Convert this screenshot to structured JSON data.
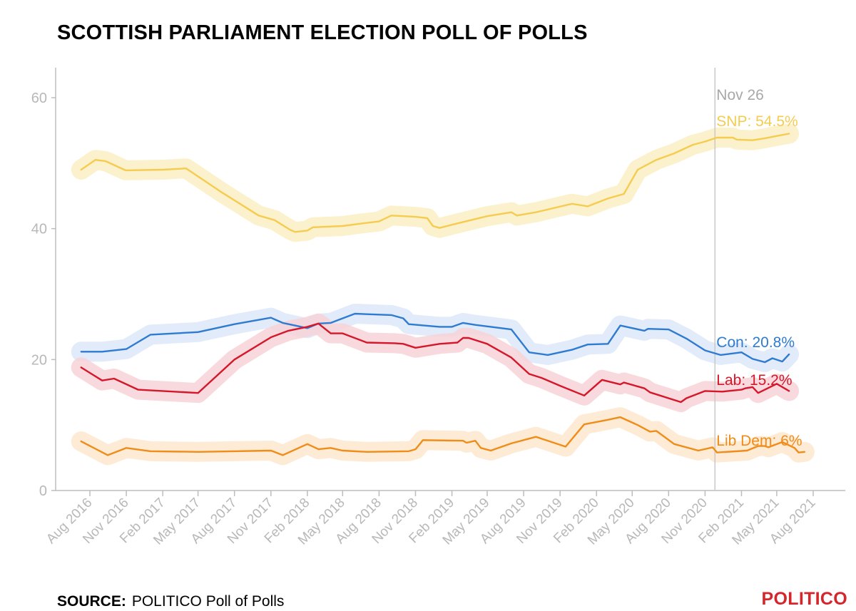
{
  "title": "SCOTTISH PARLIAMENT ELECTION POLL OF POLLS",
  "footer": {
    "source_label": "SOURCE:",
    "source_text": "POLITICO Poll of Polls"
  },
  "brand": {
    "logo_text": "POLITICO",
    "color": "#d7262b"
  },
  "chart_data": {
    "type": "line",
    "ylim": [
      0,
      65
    ],
    "yticks": [
      0,
      20,
      40,
      60
    ],
    "xlim": [
      "2016-06-15",
      "2021-09-15"
    ],
    "xticks": [
      "2016-08-01",
      "2016-11-01",
      "2017-02-01",
      "2017-05-01",
      "2017-08-01",
      "2017-11-01",
      "2018-02-01",
      "2018-05-01",
      "2018-08-01",
      "2018-11-01",
      "2019-02-01",
      "2019-05-01",
      "2019-08-01",
      "2019-11-01",
      "2020-02-01",
      "2020-05-01",
      "2020-08-01",
      "2020-11-01",
      "2021-02-01",
      "2021-05-01",
      "2021-08-01"
    ],
    "xtick_labels": [
      "Aug 2016",
      "Nov 2016",
      "Feb 2017",
      "May 2017",
      "Aug 2017",
      "Nov 2017",
      "Feb 2018",
      "May 2018",
      "Aug 2018",
      "Nov 2018",
      "Feb 2019",
      "May 2019",
      "Aug 2019",
      "Nov 2019",
      "Feb 2020",
      "May 2020",
      "Aug 2020",
      "Nov 2020",
      "Feb 2021",
      "May 2021",
      "Aug 2021"
    ],
    "current_date": "2020-11-26",
    "current_label": "Nov 26",
    "grid": false,
    "series": [
      {
        "name": "SNP",
        "color": "#f5cc4f",
        "band_color": "#fbeec4",
        "label": "SNP: 54.5%",
        "points": [
          [
            "2016-07-10",
            49.0
          ],
          [
            "2016-08-15",
            50.5
          ],
          [
            "2016-09-10",
            50.3
          ],
          [
            "2016-10-30",
            48.9
          ],
          [
            "2017-02-01",
            49.0
          ],
          [
            "2017-04-01",
            49.2
          ],
          [
            "2017-07-01",
            45.5
          ],
          [
            "2017-10-01",
            42.0
          ],
          [
            "2017-11-10",
            41.3
          ],
          [
            "2017-12-20",
            39.8
          ],
          [
            "2018-01-01",
            39.5
          ],
          [
            "2018-02-01",
            39.7
          ],
          [
            "2018-02-15",
            40.2
          ],
          [
            "2018-05-01",
            40.4
          ],
          [
            "2018-06-20",
            40.8
          ],
          [
            "2018-08-01",
            41.1
          ],
          [
            "2018-09-01",
            42.0
          ],
          [
            "2018-11-01",
            41.8
          ],
          [
            "2018-12-01",
            41.6
          ],
          [
            "2018-12-15",
            40.4
          ],
          [
            "2019-01-01",
            40.1
          ],
          [
            "2019-02-15",
            40.8
          ],
          [
            "2019-05-01",
            41.9
          ],
          [
            "2019-07-01",
            42.5
          ],
          [
            "2019-07-15",
            42.0
          ],
          [
            "2019-09-01",
            42.5
          ],
          [
            "2019-12-01",
            43.8
          ],
          [
            "2020-01-10",
            43.4
          ],
          [
            "2020-03-01",
            44.6
          ],
          [
            "2020-04-10",
            45.3
          ],
          [
            "2020-05-15",
            49.0
          ],
          [
            "2020-07-01",
            50.5
          ],
          [
            "2020-08-15",
            51.5
          ],
          [
            "2020-10-01",
            52.8
          ],
          [
            "2020-11-01",
            53.3
          ],
          [
            "2020-12-01",
            53.9
          ],
          [
            "2021-01-10",
            53.9
          ],
          [
            "2021-01-20",
            53.6
          ],
          [
            "2021-03-01",
            53.5
          ],
          [
            "2021-04-01",
            53.8
          ],
          [
            "2021-05-05",
            54.2
          ],
          [
            "2021-06-01",
            54.5
          ]
        ]
      },
      {
        "name": "Con",
        "color": "#2e7bd2",
        "band_color": "#dde8f8",
        "label": "Con: 20.8%",
        "points": [
          [
            "2016-07-10",
            21.2
          ],
          [
            "2016-09-01",
            21.2
          ],
          [
            "2016-11-01",
            21.6
          ],
          [
            "2017-01-01",
            23.8
          ],
          [
            "2017-05-01",
            24.2
          ],
          [
            "2017-08-01",
            25.4
          ],
          [
            "2017-11-01",
            26.4
          ],
          [
            "2017-12-01",
            25.6
          ],
          [
            "2018-01-01",
            25.2
          ],
          [
            "2018-02-01",
            24.8
          ],
          [
            "2018-03-01",
            25.5
          ],
          [
            "2018-04-01",
            25.6
          ],
          [
            "2018-06-01",
            27.0
          ],
          [
            "2018-09-01",
            26.8
          ],
          [
            "2018-10-01",
            26.3
          ],
          [
            "2018-10-15",
            25.4
          ],
          [
            "2019-01-01",
            25.0
          ],
          [
            "2019-02-01",
            25.0
          ],
          [
            "2019-03-01",
            25.6
          ],
          [
            "2019-04-01",
            25.3
          ],
          [
            "2019-07-01",
            24.6
          ],
          [
            "2019-08-15",
            21.1
          ],
          [
            "2019-10-01",
            20.7
          ],
          [
            "2019-12-01",
            21.5
          ],
          [
            "2020-01-10",
            22.3
          ],
          [
            "2020-03-01",
            22.4
          ],
          [
            "2020-04-01",
            25.2
          ],
          [
            "2020-06-01",
            24.4
          ],
          [
            "2020-06-10",
            24.7
          ],
          [
            "2020-08-01",
            24.6
          ],
          [
            "2020-09-15",
            23.2
          ],
          [
            "2020-11-01",
            21.4
          ],
          [
            "2020-12-10",
            20.7
          ],
          [
            "2021-02-01",
            21.1
          ],
          [
            "2021-03-01",
            20.1
          ],
          [
            "2021-04-01",
            19.6
          ],
          [
            "2021-04-20",
            20.2
          ],
          [
            "2021-05-15",
            19.7
          ],
          [
            "2021-06-01",
            20.8
          ]
        ]
      },
      {
        "name": "Lab",
        "color": "#d6162a",
        "band_color": "#f7d3d8",
        "label": "Lab: 15.2%",
        "points": [
          [
            "2016-07-10",
            18.8
          ],
          [
            "2016-09-01",
            16.8
          ],
          [
            "2016-10-01",
            17.1
          ],
          [
            "2016-12-01",
            15.4
          ],
          [
            "2017-03-01",
            15.1
          ],
          [
            "2017-05-01",
            14.9
          ],
          [
            "2017-08-01",
            20.0
          ],
          [
            "2017-11-01",
            23.4
          ],
          [
            "2017-12-15",
            24.4
          ],
          [
            "2018-02-01",
            25.0
          ],
          [
            "2018-03-01",
            25.5
          ],
          [
            "2018-04-01",
            24.0
          ],
          [
            "2018-05-01",
            24.0
          ],
          [
            "2018-07-01",
            22.6
          ],
          [
            "2018-09-10",
            22.5
          ],
          [
            "2018-10-01",
            22.4
          ],
          [
            "2018-11-01",
            21.8
          ],
          [
            "2019-01-01",
            22.4
          ],
          [
            "2019-02-15",
            22.6
          ],
          [
            "2019-03-01",
            23.3
          ],
          [
            "2019-03-15",
            23.3
          ],
          [
            "2019-05-01",
            22.4
          ],
          [
            "2019-07-01",
            20.3
          ],
          [
            "2019-08-15",
            17.8
          ],
          [
            "2019-09-15",
            17.2
          ],
          [
            "2019-11-01",
            16.0
          ],
          [
            "2020-01-01",
            14.5
          ],
          [
            "2020-02-15",
            16.9
          ],
          [
            "2020-04-01",
            16.2
          ],
          [
            "2020-04-10",
            16.5
          ],
          [
            "2020-06-01",
            15.6
          ],
          [
            "2020-06-15",
            15.0
          ],
          [
            "2020-09-01",
            13.5
          ],
          [
            "2020-09-15",
            14.1
          ],
          [
            "2020-11-01",
            15.2
          ],
          [
            "2020-12-15",
            15.1
          ],
          [
            "2021-02-01",
            15.4
          ],
          [
            "2021-02-10",
            15.6
          ],
          [
            "2021-03-01",
            15.8
          ],
          [
            "2021-03-15",
            14.9
          ],
          [
            "2021-05-01",
            16.3
          ],
          [
            "2021-06-01",
            15.2
          ]
        ]
      },
      {
        "name": "Lib Dem",
        "color": "#f08c18",
        "band_color": "#fde7cf",
        "label": "Lib Dem: 6%",
        "points": [
          [
            "2016-07-10",
            7.5
          ],
          [
            "2016-09-15",
            5.4
          ],
          [
            "2016-11-01",
            6.5
          ],
          [
            "2017-01-01",
            6.0
          ],
          [
            "2017-05-01",
            5.9
          ],
          [
            "2017-08-01",
            6.0
          ],
          [
            "2017-11-01",
            6.1
          ],
          [
            "2017-12-01",
            5.4
          ],
          [
            "2018-02-01",
            7.1
          ],
          [
            "2018-03-01",
            6.3
          ],
          [
            "2018-04-01",
            6.5
          ],
          [
            "2018-05-01",
            6.1
          ],
          [
            "2018-07-01",
            5.9
          ],
          [
            "2018-10-15",
            6.0
          ],
          [
            "2018-11-01",
            6.3
          ],
          [
            "2018-11-20",
            7.7
          ],
          [
            "2019-03-01",
            7.6
          ],
          [
            "2019-03-10",
            7.3
          ],
          [
            "2019-04-01",
            7.6
          ],
          [
            "2019-04-15",
            6.5
          ],
          [
            "2019-05-10",
            6.1
          ],
          [
            "2019-07-01",
            7.2
          ],
          [
            "2019-09-01",
            8.2
          ],
          [
            "2019-11-15",
            6.7
          ],
          [
            "2020-01-01",
            10.1
          ],
          [
            "2020-03-01",
            10.8
          ],
          [
            "2020-04-01",
            11.2
          ],
          [
            "2020-05-15",
            10.0
          ],
          [
            "2020-06-15",
            9.0
          ],
          [
            "2020-07-01",
            9.1
          ],
          [
            "2020-08-15",
            7.1
          ],
          [
            "2020-10-15",
            6.1
          ],
          [
            "2020-11-20",
            6.6
          ],
          [
            "2020-12-01",
            5.8
          ],
          [
            "2021-02-15",
            6.1
          ],
          [
            "2021-03-15",
            6.8
          ],
          [
            "2021-04-01",
            6.8
          ],
          [
            "2021-04-10",
            6.6
          ],
          [
            "2021-05-15",
            7.4
          ],
          [
            "2021-06-15",
            6.5
          ],
          [
            "2021-06-25",
            5.8
          ],
          [
            "2021-07-10",
            5.9
          ]
        ]
      }
    ]
  }
}
